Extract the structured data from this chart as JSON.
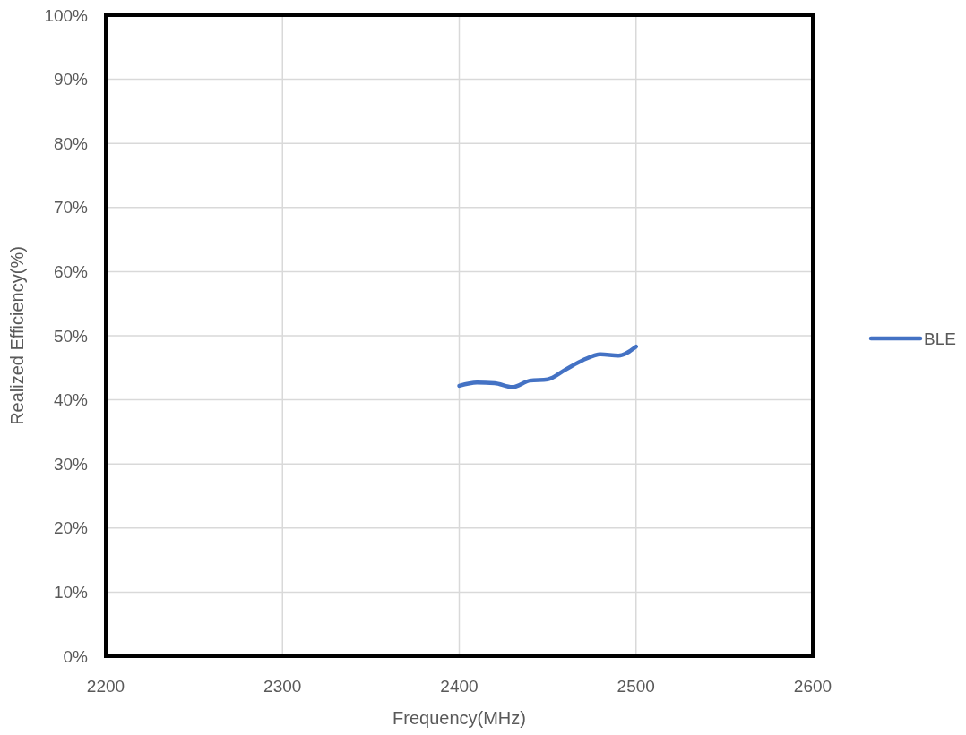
{
  "chart_data": {
    "type": "line",
    "xlabel": "Frequency(MHz)",
    "ylabel": "Realized Efficiency(%)",
    "x": [
      2400,
      2410,
      2420,
      2430,
      2440,
      2450,
      2460,
      2470,
      2480,
      2490,
      2500
    ],
    "series": [
      {
        "name": "BLE",
        "color": "#4472c4",
        "values": [
          42.2,
          42.7,
          42.6,
          42.0,
          43.0,
          43.2,
          44.7,
          46.2,
          47.1,
          46.9,
          48.3
        ]
      }
    ],
    "xlim": [
      2200,
      2600
    ],
    "xticks": [
      2200,
      2300,
      2400,
      2500,
      2600
    ],
    "ylim": [
      0,
      100
    ],
    "yticks": [
      {
        "value": 0,
        "label": "0%"
      },
      {
        "value": 10,
        "label": "10%"
      },
      {
        "value": 20,
        "label": "20%"
      },
      {
        "value": 30,
        "label": "30%"
      },
      {
        "value": 40,
        "label": "40%"
      },
      {
        "value": 50,
        "label": "50%"
      },
      {
        "value": 60,
        "label": "60%"
      },
      {
        "value": 70,
        "label": "70%"
      },
      {
        "value": 80,
        "label": "80%"
      },
      {
        "value": 90,
        "label": "90%"
      },
      {
        "value": 100,
        "label": "100%"
      }
    ],
    "grid": true,
    "legend": "right",
    "marker": "none",
    "line_style": "solid"
  }
}
